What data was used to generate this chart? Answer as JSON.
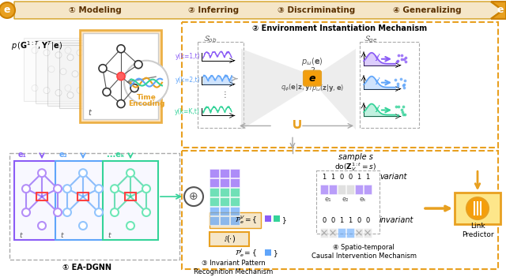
{
  "title_banner": {
    "text": "① Modeling       ② Inferring       ③ Discriminating       ④ Generalizing",
    "bg_color": "#F5E6C8",
    "arrow_color": "#E8A020",
    "e_color": "#E8A020"
  },
  "fig_bg": "#FFFFFF",
  "top_label": "p(G^{1:T}, Y^T|e)",
  "sections": {
    "modeling": "① Modeling",
    "inferring": "② Inferring",
    "discriminating": "③ Discriminating",
    "generalizing": "④ Generalizing"
  },
  "colors": {
    "purple": "#8B5CF6",
    "blue": "#60A5FA",
    "green": "#34D399",
    "orange": "#F59E0B",
    "red": "#EF4444",
    "gray": "#9CA3AF",
    "dark_gray": "#4B5563",
    "light_orange": "#FDE68A",
    "dashed_orange": "#F59E0B",
    "dashed_gray": "#9CA3AF"
  },
  "mechanism2_title": "② Environment Instantiation Mechanism",
  "mechanism3_title": "③ Invariant Pattern\nRecognition Mechanism",
  "mechanism4_title": "④ Spatio-temporal\nCausal Intervention Mechanism",
  "ea_dgnn_label": "① EA-DGNN",
  "link_predictor_label": "Link\nPredictor",
  "sample_s_label": "sample s",
  "do_label": "do(Z_V^{1:t} = s)",
  "variant_label": "variant",
  "invariant_label": "invariant"
}
